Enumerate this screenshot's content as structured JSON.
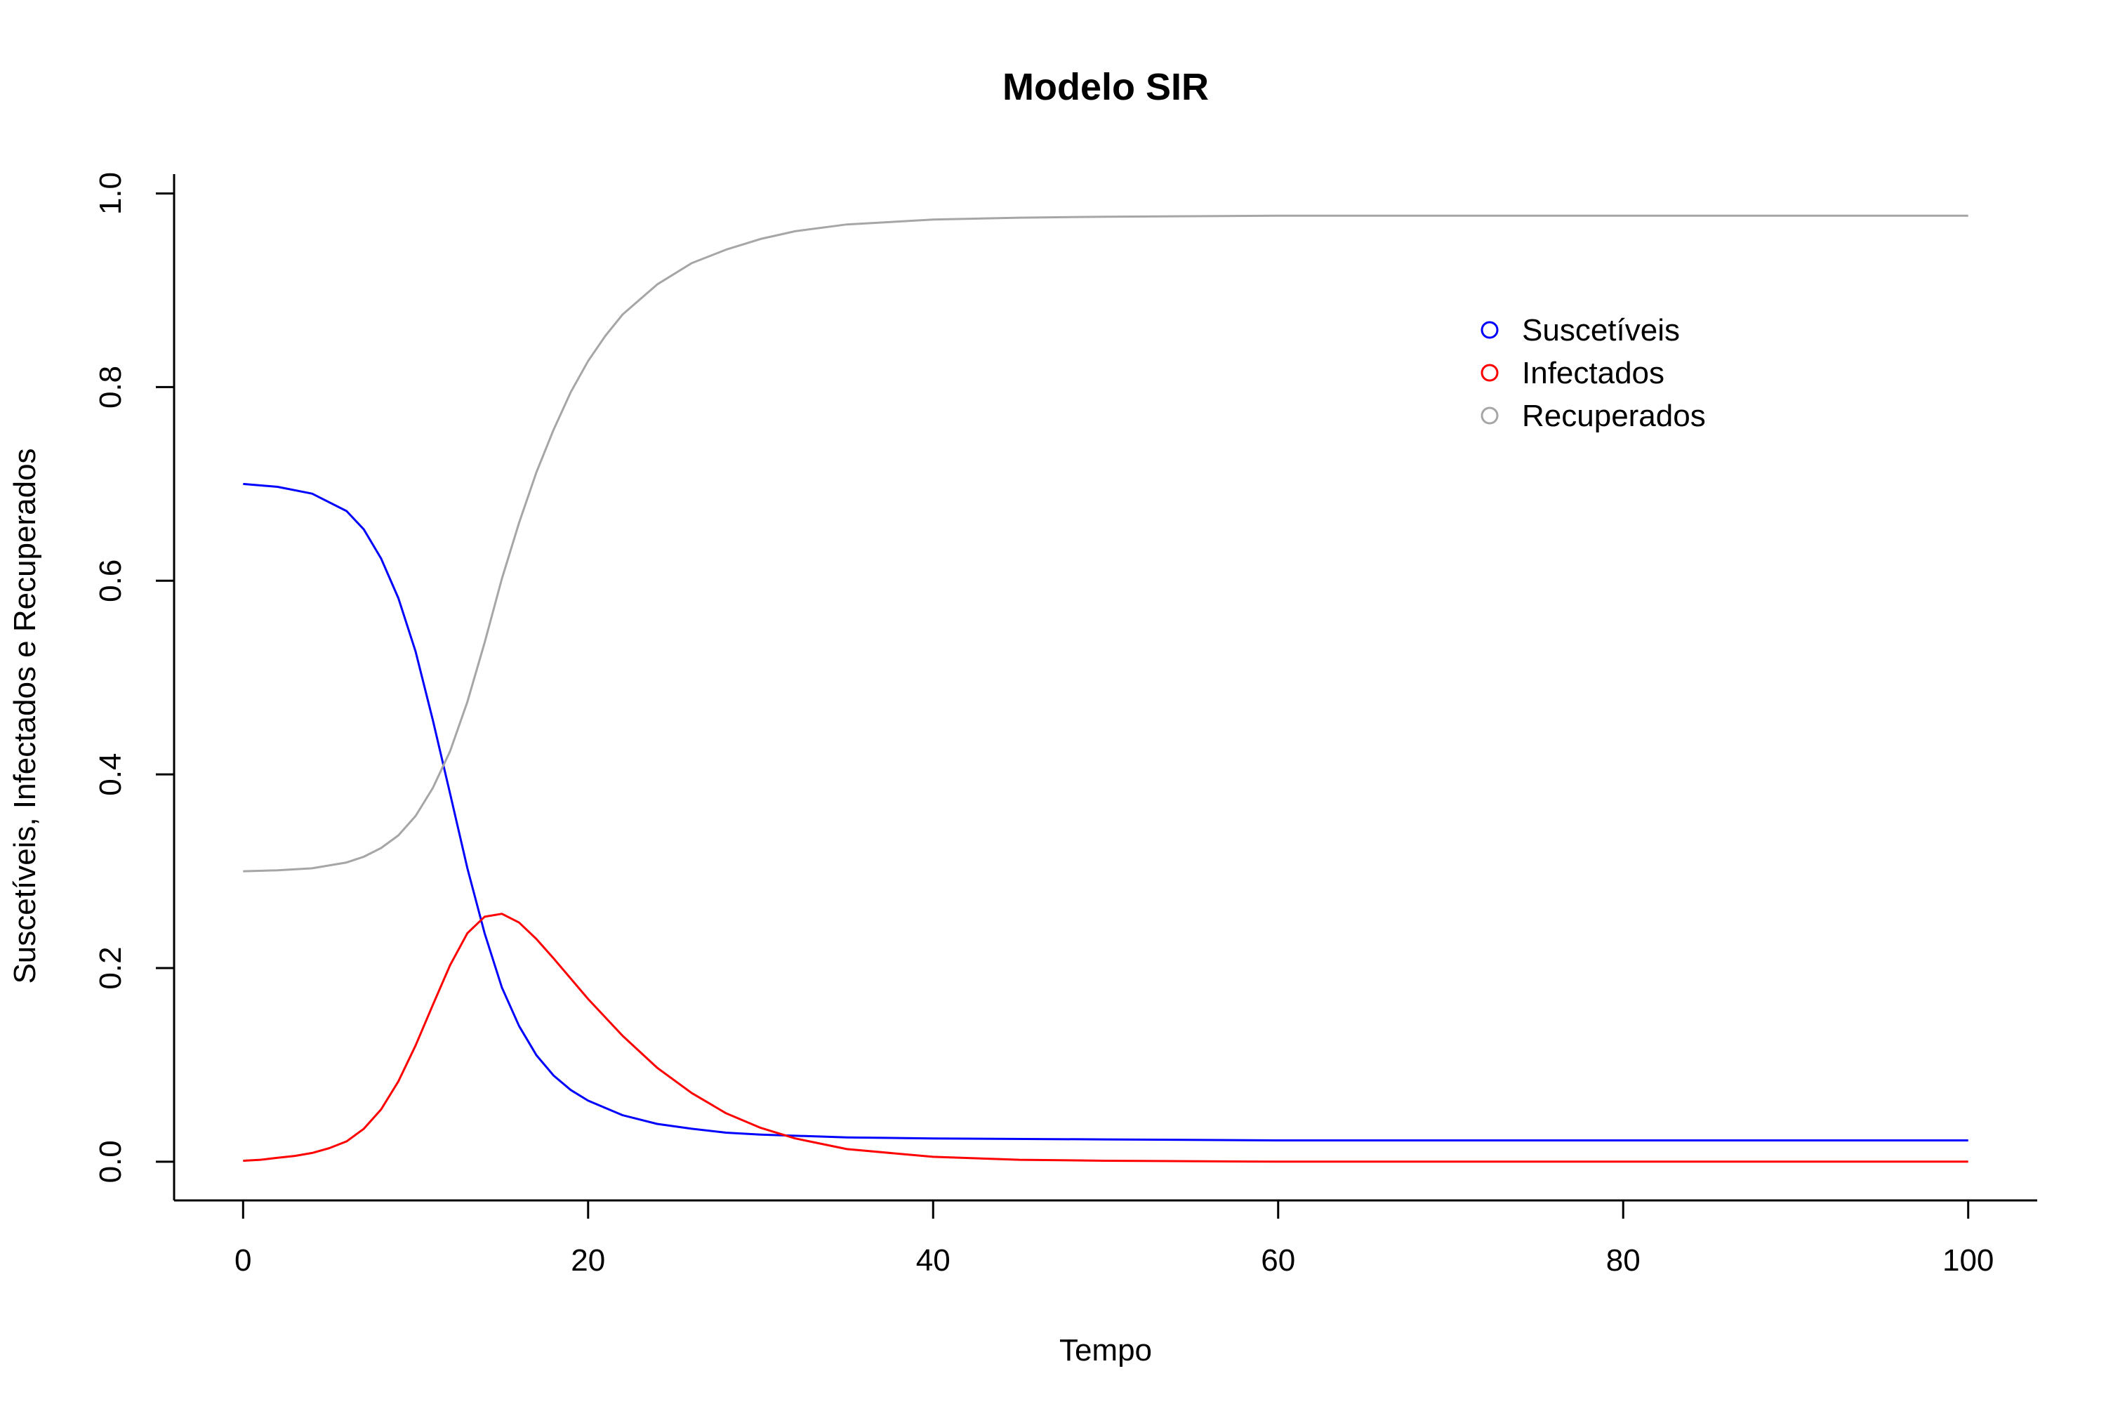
{
  "chart_data": {
    "type": "line",
    "title": "Modelo SIR",
    "xlabel": "Tempo",
    "ylabel": "Suscetíveis, Infectados e Recuperados",
    "xlim": [
      -4,
      104
    ],
    "ylim": [
      -0.04,
      1.02
    ],
    "xticks": [
      0,
      20,
      40,
      60,
      80,
      100
    ],
    "yticks": [
      0.0,
      0.2,
      0.4,
      0.6,
      0.8,
      1.0
    ],
    "xtick_labels": [
      "0",
      "20",
      "40",
      "60",
      "80",
      "100"
    ],
    "ytick_labels": [
      "0.0",
      "0.2",
      "0.4",
      "0.6",
      "0.8",
      "1.0"
    ],
    "grid": false,
    "legend_position": "top-right",
    "series": [
      {
        "name": "Suscetíveis",
        "color": "#0000ff",
        "x": [
          0,
          2,
          4,
          6,
          7,
          8,
          9,
          10,
          11,
          12,
          13,
          14,
          15,
          16,
          17,
          18,
          19,
          20,
          22,
          24,
          26,
          28,
          30,
          35,
          40,
          50,
          60,
          70,
          80,
          90,
          100
        ],
        "y": [
          0.7,
          0.697,
          0.69,
          0.672,
          0.653,
          0.623,
          0.582,
          0.527,
          0.456,
          0.38,
          0.303,
          0.236,
          0.18,
          0.14,
          0.11,
          0.089,
          0.074,
          0.063,
          0.048,
          0.039,
          0.034,
          0.03,
          0.028,
          0.025,
          0.024,
          0.023,
          0.022,
          0.022,
          0.022,
          0.022,
          0.022
        ]
      },
      {
        "name": "Infectados",
        "color": "#ff0000",
        "x": [
          0,
          1,
          2,
          3,
          4,
          5,
          6,
          7,
          8,
          9,
          10,
          11,
          12,
          13,
          14,
          15,
          16,
          17,
          18,
          20,
          22,
          24,
          26,
          28,
          30,
          32,
          35,
          40,
          45,
          50,
          60,
          70,
          80,
          90,
          100
        ],
        "y": [
          0.001,
          0.002,
          0.004,
          0.006,
          0.009,
          0.014,
          0.021,
          0.034,
          0.054,
          0.083,
          0.12,
          0.162,
          0.203,
          0.236,
          0.253,
          0.256,
          0.247,
          0.23,
          0.21,
          0.168,
          0.13,
          0.097,
          0.071,
          0.05,
          0.035,
          0.024,
          0.013,
          0.005,
          0.002,
          0.001,
          0.0,
          0.0,
          0.0,
          0.0,
          0.0
        ]
      },
      {
        "name": "Recuperados",
        "color": "#a6a6a6",
        "x": [
          0,
          2,
          4,
          6,
          7,
          8,
          9,
          10,
          11,
          12,
          13,
          14,
          15,
          16,
          17,
          18,
          19,
          20,
          21,
          22,
          24,
          26,
          28,
          30,
          32,
          35,
          40,
          45,
          50,
          60,
          70,
          80,
          90,
          100
        ],
        "y": [
          0.3,
          0.301,
          0.303,
          0.309,
          0.315,
          0.324,
          0.337,
          0.357,
          0.386,
          0.424,
          0.475,
          0.536,
          0.602,
          0.66,
          0.712,
          0.756,
          0.795,
          0.827,
          0.853,
          0.875,
          0.906,
          0.928,
          0.942,
          0.953,
          0.961,
          0.968,
          0.973,
          0.975,
          0.976,
          0.977,
          0.977,
          0.977,
          0.977,
          0.977
        ]
      }
    ]
  }
}
